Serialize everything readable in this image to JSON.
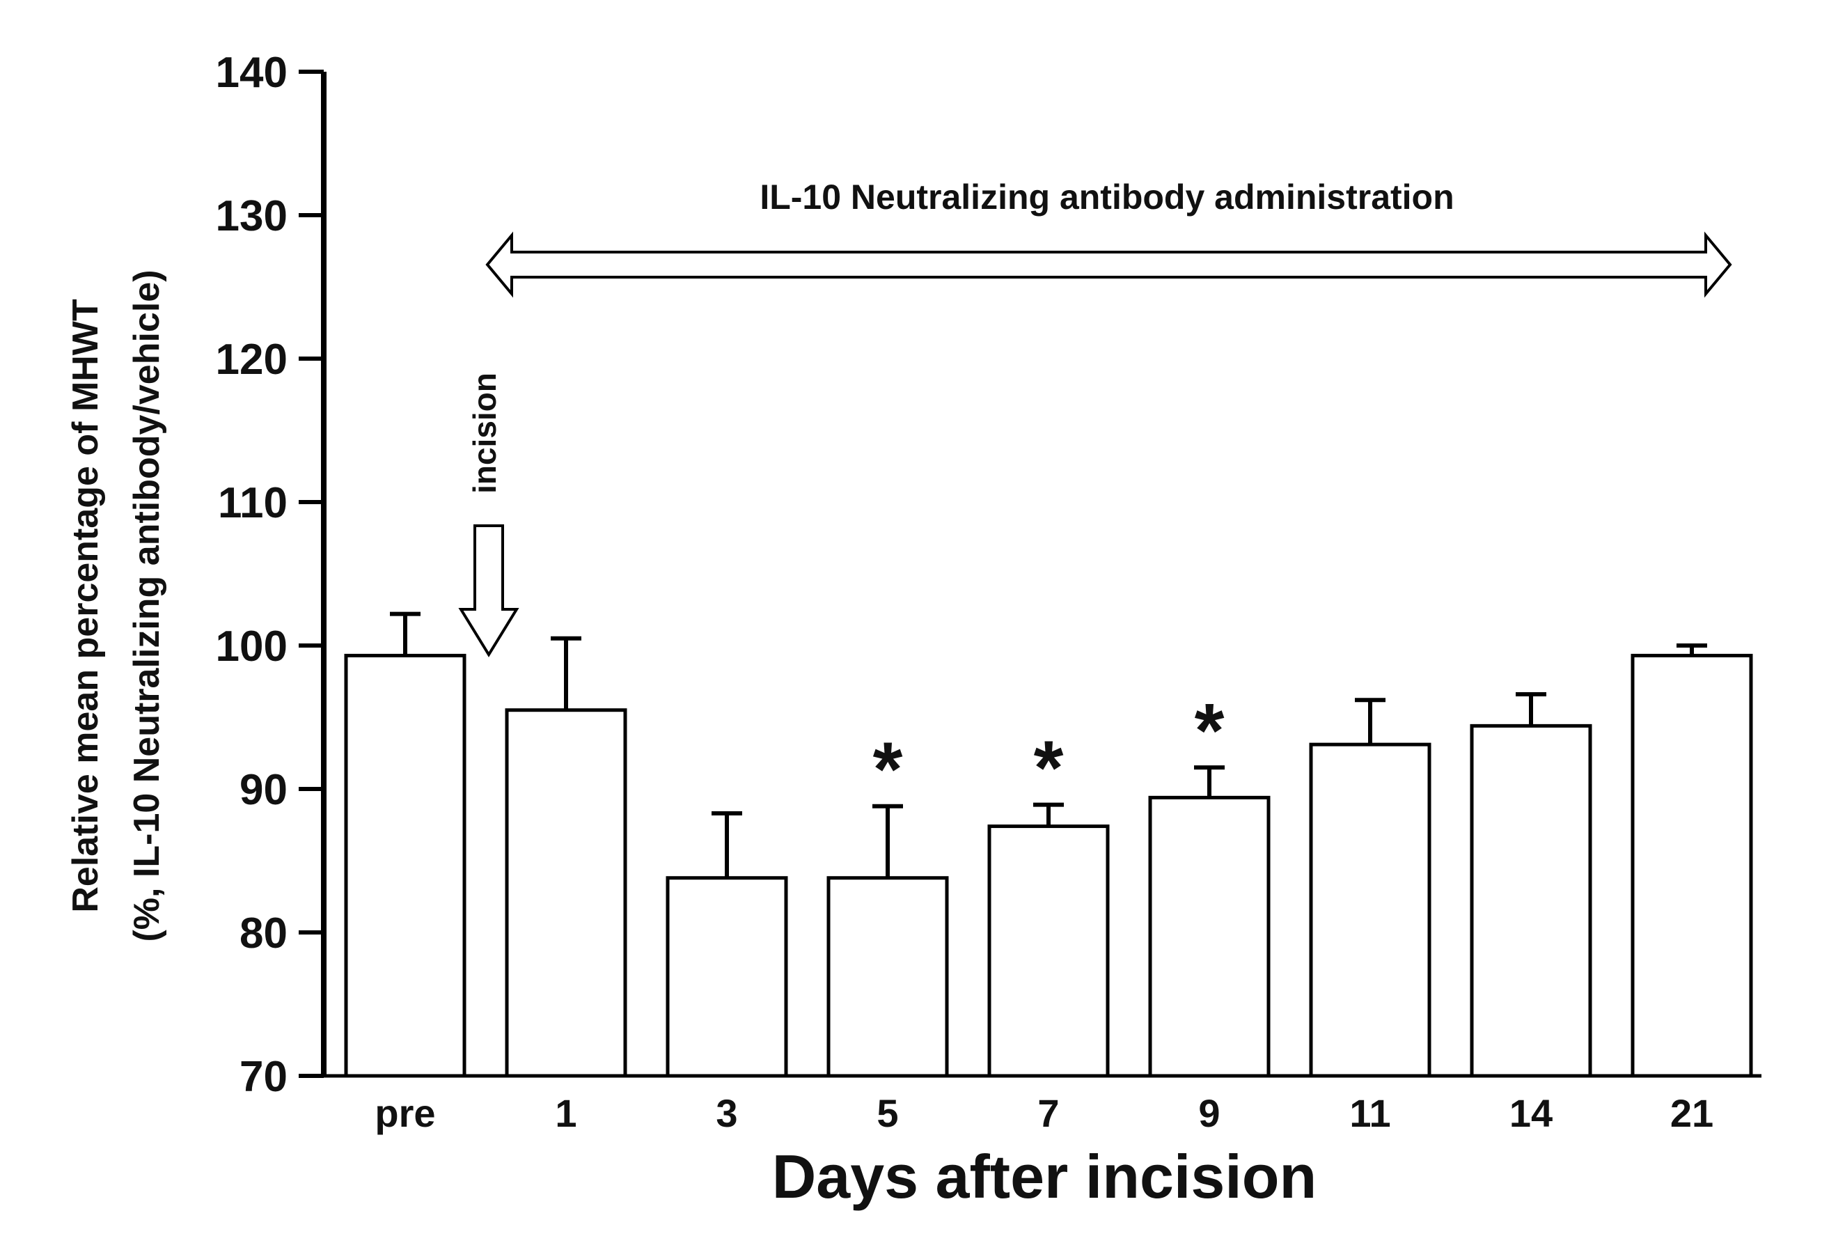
{
  "chart_data": {
    "type": "bar",
    "title": "",
    "xlabel": "Days after incision",
    "ylabel_line1": "Relative mean percentage of MHWT",
    "ylabel_line2": "(%, IL-10 Neutralizing antibody/vehicle)",
    "categories": [
      "pre",
      "1",
      "3",
      "5",
      "7",
      "9",
      "11",
      "14",
      "21"
    ],
    "values": [
      99.3,
      95.5,
      83.8,
      83.8,
      87.4,
      89.4,
      93.1,
      94.4,
      99.3
    ],
    "errors": [
      2.9,
      5.0,
      4.5,
      5.0,
      1.5,
      2.1,
      3.1,
      2.2,
      0.7
    ],
    "significance": [
      "",
      "",
      "",
      "*",
      "*",
      "*",
      "",
      "",
      ""
    ],
    "ylim": [
      70,
      140
    ],
    "yticks": [
      70,
      80,
      90,
      100,
      110,
      120,
      130,
      140
    ],
    "grid": false,
    "annotations": {
      "treatment_label": "IL-10 Neutralizing antibody administration",
      "incision_label": "incision"
    }
  },
  "colors": {
    "bar_fill": "#ffffff",
    "stroke": "#000000",
    "text": "#111111"
  }
}
